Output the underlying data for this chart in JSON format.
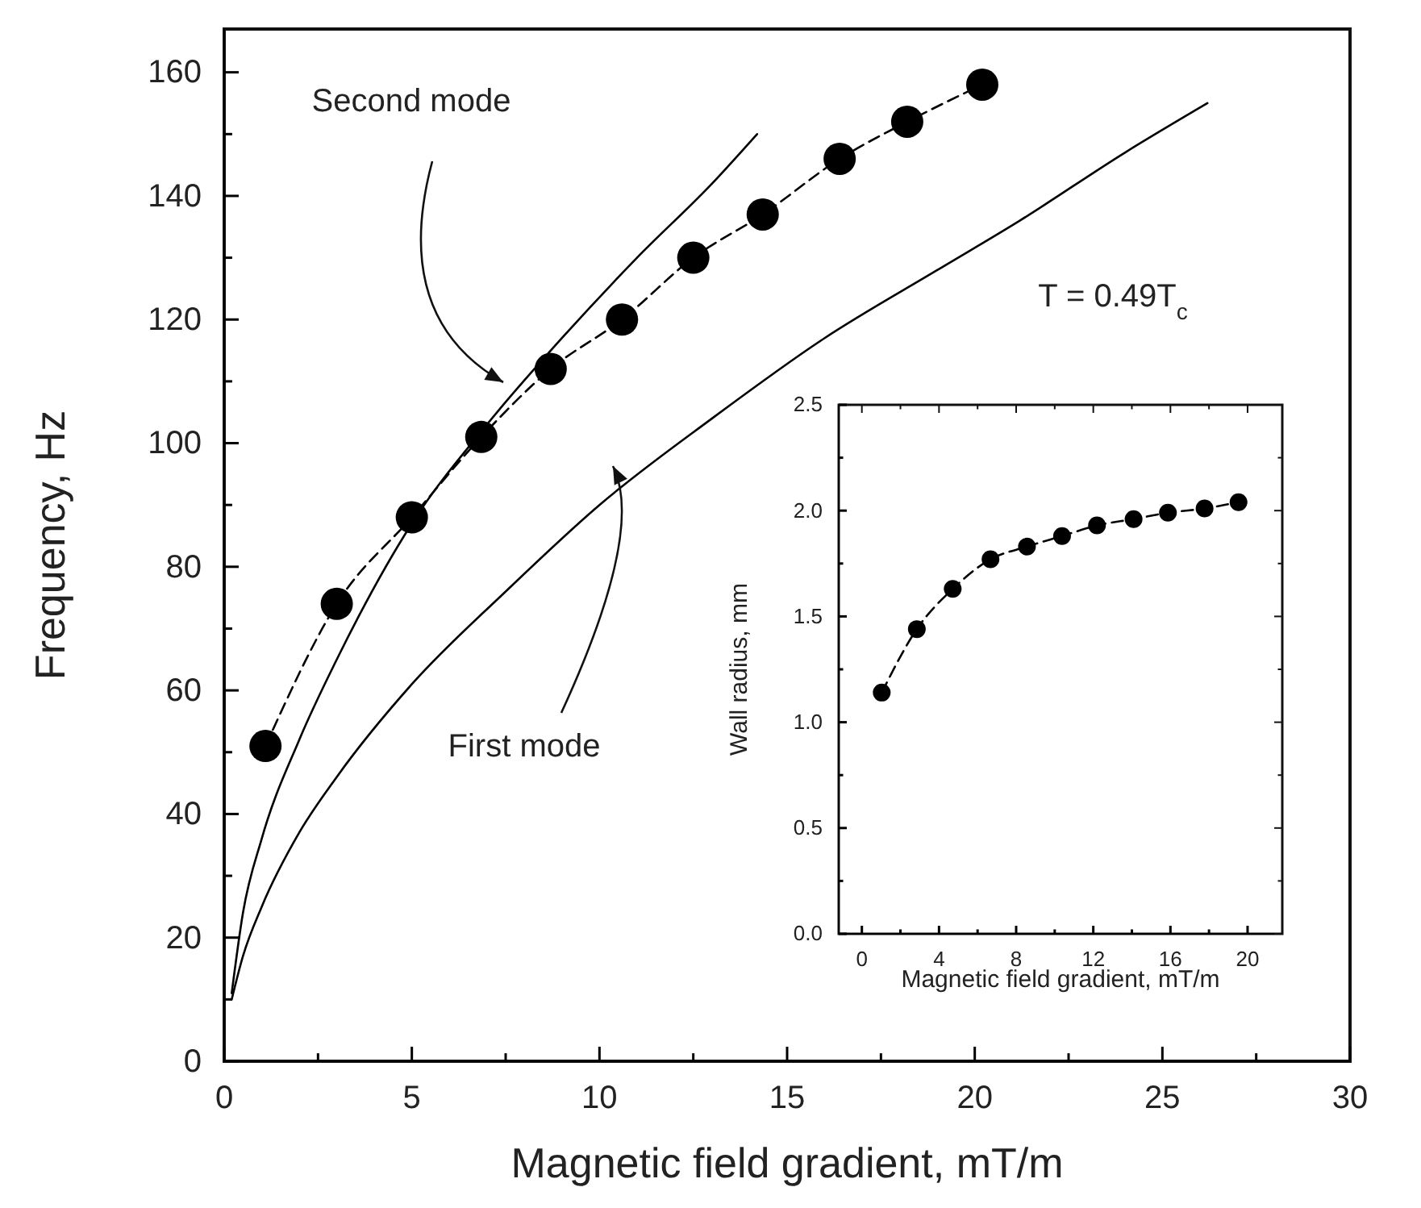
{
  "chart_data": [
    {
      "type": "line",
      "xlabel": "Magnetic field gradient, mT/m",
      "ylabel": "Frequency, Hz",
      "xlim": [
        0,
        30
      ],
      "ylim": [
        0,
        167
      ],
      "xticks": [
        0,
        {
          "value": 2.5,
          "label": null
        },
        5,
        {
          "value": 7.5,
          "label": null
        },
        10,
        {
          "value": 12.5,
          "label": null
        },
        15,
        {
          "value": 17.5,
          "label": null
        },
        20,
        {
          "value": 22.5,
          "label": null
        },
        25,
        {
          "value": 27.5,
          "label": null
        },
        30
      ],
      "yticks": [
        0,
        {
          "value": 10,
          "label": null
        },
        20,
        {
          "value": 30,
          "label": null
        },
        40,
        {
          "value": 50,
          "label": null
        },
        60,
        {
          "value": 70,
          "label": null
        },
        80,
        {
          "value": 90,
          "label": null
        },
        100,
        {
          "value": 110,
          "label": null
        },
        120,
        {
          "value": 130,
          "label": null
        },
        140,
        {
          "value": 150,
          "label": null
        },
        160
      ],
      "series": [
        {
          "color": "#000000",
          "marker": "none",
          "line_style": "solid",
          "x": [
            0.2,
            0.5,
            1,
            2,
            3,
            5,
            7,
            9,
            11,
            13,
            14.2
          ],
          "values": [
            11,
            24,
            36,
            52,
            65,
            87,
            103,
            117,
            130,
            142,
            150
          ]
        },
        {
          "color": "#000000",
          "marker": "none",
          "line_style": "solid",
          "x": [
            0.2,
            0.5,
            1,
            2,
            3,
            5,
            7.5,
            10,
            13,
            16,
            19,
            21.2,
            24,
            26.2
          ],
          "values": [
            10,
            17,
            25,
            37,
            46,
            61,
            76,
            90,
            104,
            117,
            128,
            136,
            147,
            155
          ]
        },
        {
          "color": "#000000",
          "marker": "circle",
          "line_style": "dashed",
          "x": [
            1.1,
            3.0,
            5.0,
            6.85,
            8.7,
            10.6,
            12.5,
            14.35,
            16.4,
            18.2,
            20.2
          ],
          "values": [
            51,
            74,
            88,
            101,
            112,
            120,
            130,
            137,
            146,
            152,
            158
          ]
        }
      ],
      "annotations": [
        "Second mode",
        "First mode",
        "T = 0.49T$_{c}$"
      ]
    },
    {
      "type": "line",
      "xlabel": "Magnetic field gradient, mT/m",
      "ylabel": "Wall radius, mm",
      "xlim": [
        -1.2,
        21.8
      ],
      "ylim": [
        0,
        2.5
      ],
      "xticks": [
        0,
        {
          "value": 2,
          "label": null
        },
        4,
        {
          "value": 6,
          "label": null
        },
        8,
        {
          "value": 10,
          "label": null
        },
        12,
        {
          "value": 14,
          "label": null
        },
        16,
        {
          "value": 18,
          "label": null
        },
        20
      ],
      "yticks": [
        {
          "value": 0,
          "label": "0.0"
        },
        {
          "value": 0.25,
          "label": null
        },
        {
          "value": 0.5,
          "label": "0.5"
        },
        {
          "value": 0.75,
          "label": null
        },
        {
          "value": 1,
          "label": "1.0"
        },
        {
          "value": 1.25,
          "label": null
        },
        {
          "value": 1.5,
          "label": "1.5"
        },
        {
          "value": 1.75,
          "label": null
        },
        {
          "value": 2,
          "label": "2.0"
        },
        {
          "value": 2.25,
          "label": null
        },
        {
          "value": 2.5,
          "label": "2.5"
        }
      ],
      "series": [
        {
          "color": "#000000",
          "marker": "circle",
          "line_style": "dashed",
          "x": [
            1.03,
            2.85,
            4.71,
            6.67,
            8.56,
            10.38,
            12.19,
            14.09,
            15.87,
            17.77,
            19.53
          ],
          "values": [
            1.14,
            1.44,
            1.63,
            1.77,
            1.83,
            1.88,
            1.93,
            1.96,
            1.99,
            2.01,
            2.04
          ]
        }
      ]
    }
  ]
}
